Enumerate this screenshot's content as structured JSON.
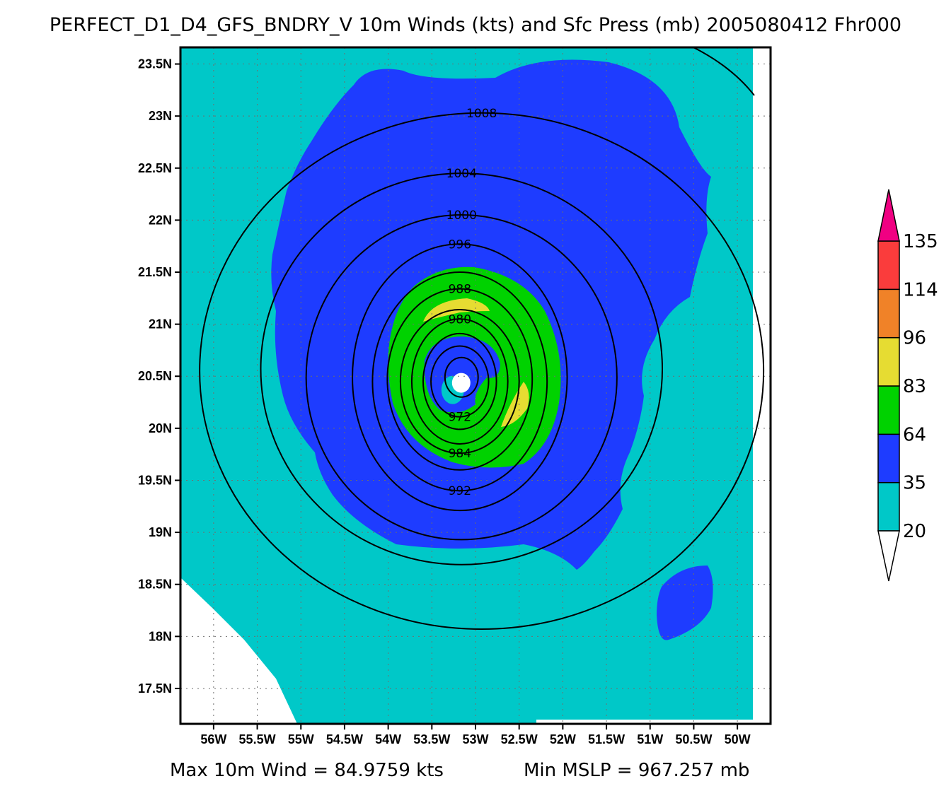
{
  "title": "PERFECT_D1_D4_GFS_BNDRY_V 10m Winds (kts) and Sfc Press (mb) 2005080412 Fhr000",
  "footer": {
    "max_wind": "Max 10m Wind = 84.9759 kts",
    "min_mslp": "Min MSLP = 967.257 mb"
  },
  "chart_data": {
    "type": "contour",
    "x_ticks": [
      {
        "value": -56.0,
        "label": "56W"
      },
      {
        "value": -55.5,
        "label": "55.5W"
      },
      {
        "value": -55.0,
        "label": "55W"
      },
      {
        "value": -54.5,
        "label": "54.5W"
      },
      {
        "value": -54.0,
        "label": "54W"
      },
      {
        "value": -53.5,
        "label": "53.5W"
      },
      {
        "value": -53.0,
        "label": "53W"
      },
      {
        "value": -52.5,
        "label": "52.5W"
      },
      {
        "value": -52.0,
        "label": "52W"
      },
      {
        "value": -51.5,
        "label": "51.5W"
      },
      {
        "value": -51.0,
        "label": "51W"
      },
      {
        "value": -50.5,
        "label": "50.5W"
      },
      {
        "value": -50.0,
        "label": "50W"
      }
    ],
    "y_ticks": [
      {
        "value": 23.5,
        "label": "23.5N"
      },
      {
        "value": 23.0,
        "label": "23N"
      },
      {
        "value": 22.5,
        "label": "22.5N"
      },
      {
        "value": 22.0,
        "label": "22N"
      },
      {
        "value": 21.5,
        "label": "21.5N"
      },
      {
        "value": 21.0,
        "label": "21N"
      },
      {
        "value": 20.5,
        "label": "20.5N"
      },
      {
        "value": 20.0,
        "label": "20N"
      },
      {
        "value": 19.5,
        "label": "19.5N"
      },
      {
        "value": 19.0,
        "label": "19N"
      },
      {
        "value": 18.5,
        "label": "18.5N"
      },
      {
        "value": 18.0,
        "label": "18N"
      },
      {
        "value": 17.5,
        "label": "17.5N"
      }
    ],
    "xlim": [
      -56.38,
      -49.62
    ],
    "ylim": [
      17.16,
      23.66
    ],
    "grid": true,
    "storm_center": {
      "lon": -53.18,
      "lat": 20.45
    },
    "pressure_contours": [
      {
        "level": 1008,
        "label": "1008",
        "rx": 3.23,
        "ry": 2.48,
        "dlon": 0.25,
        "dlat": 0.1
      },
      {
        "level": 1004,
        "label": "1004",
        "rx": 2.3,
        "ry": 1.88,
        "dlon": 0.02,
        "dlat": 0.12
      },
      {
        "level": 1000,
        "label": "1000",
        "rx": 1.78,
        "ry": 1.56,
        "dlon": 0.02,
        "dlat": 0.04
      },
      {
        "level": 996,
        "label": "996",
        "rx": 1.23,
        "ry": 1.28,
        "dlon": 0.0,
        "dlat": 0.04
      },
      {
        "level": 992,
        "label": "992",
        "rx": 1.0,
        "ry": 1.05,
        "dlon": 0.0,
        "dlat": 0.0
      },
      {
        "level": 988,
        "label": "988",
        "rx": 0.83,
        "ry": 0.87,
        "dlon": 0.0,
        "dlat": 0.02
      },
      {
        "level": 984,
        "label": "984",
        "rx": 0.68,
        "ry": 0.69,
        "dlon": 0.0,
        "dlat": 0.0
      },
      {
        "level": 980,
        "label": "980",
        "rx": 0.55,
        "ry": 0.6,
        "dlon": 0.0,
        "dlat": 0.0
      },
      {
        "level": 976,
        "label": "",
        "rx": 0.42,
        "ry": 0.46,
        "dlon": 0.0,
        "dlat": 0.0
      },
      {
        "level": 972,
        "label": "972",
        "rx": 0.33,
        "ry": 0.34,
        "dlon": 0.0,
        "dlat": 0.0
      },
      {
        "level": 968,
        "label": "",
        "rx": 0.19,
        "ry": 0.19,
        "dlon": 0.02,
        "dlat": 0.04
      }
    ],
    "wind_shading": [
      {
        "min": 20,
        "max": 35,
        "color": "#00c8c8"
      },
      {
        "min": 35,
        "max": 64,
        "color": "#1e3cff"
      },
      {
        "min": 64,
        "max": 83,
        "color": "#00d200"
      },
      {
        "min": 83,
        "max": 96,
        "color": "#e6dc32"
      },
      {
        "min": 96,
        "max": 114,
        "color": "#f08228"
      },
      {
        "min": 114,
        "max": 135,
        "color": "#fa3c3c"
      },
      {
        "min": 135,
        "max": null,
        "color": "#f00082"
      }
    ],
    "colorbar_labels": [
      "20",
      "35",
      "64",
      "83",
      "96",
      "114",
      "135"
    ],
    "below_min_color": "#ffffff",
    "colors": {
      "contour": "#000000",
      "frame": "#000000",
      "grid": "#6e6e6e"
    }
  }
}
